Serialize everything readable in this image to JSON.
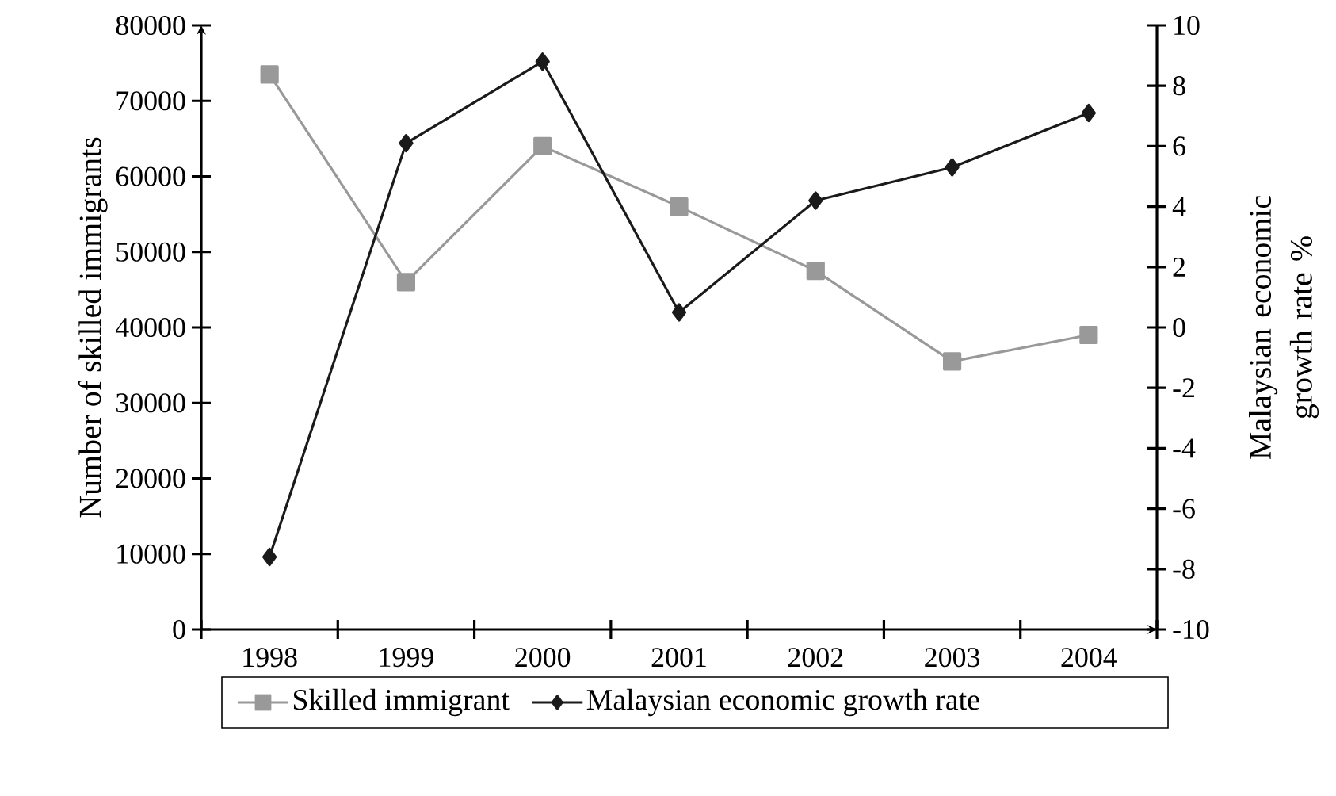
{
  "chart_data": {
    "type": "line",
    "categories": [
      "1998",
      "1999",
      "2000",
      "2001",
      "2002",
      "2003",
      "2004"
    ],
    "ylabel": "Number of skilled immigrants",
    "y2label": "Malaysian economic growth rate %",
    "ylim": [
      0,
      80000
    ],
    "yticks": [
      0,
      10000,
      20000,
      30000,
      40000,
      50000,
      60000,
      70000,
      80000
    ],
    "y2lim": [
      -10,
      10
    ],
    "y2ticks": [
      -10,
      -8,
      -6,
      -4,
      -2,
      0,
      2,
      4,
      6,
      8,
      10
    ],
    "legend": "bottom",
    "series": [
      {
        "name": "Skilled immigrant",
        "color": "#999999",
        "marker": "square",
        "values": [
          73500,
          46000,
          64000,
          56000,
          47500,
          35500,
          39000
        ]
      },
      {
        "name": "Malaysian economic growth rate",
        "color": "#1a1a1a",
        "marker": "diamond",
        "axis": "y2",
        "values": [
          -7.6,
          6.1,
          8.8,
          0.5,
          4.2,
          5.3,
          7.1
        ]
      }
    ]
  }
}
